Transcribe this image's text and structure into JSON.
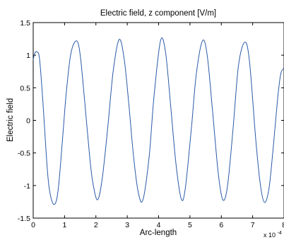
{
  "chart_data": {
    "type": "line",
    "title": "Electric field, z component [V/m]",
    "xlabel": "Arc-length",
    "ylabel": "Electric field",
    "x_exponent_label": "x 10",
    "x_exponent_power": "-4",
    "xlim": [
      0,
      8
    ],
    "ylim": [
      -1.5,
      1.5
    ],
    "x_ticks": [
      "0",
      "1",
      "2",
      "3",
      "4",
      "5",
      "6",
      "7",
      "8"
    ],
    "y_ticks": [
      "-1.5",
      "-1",
      "-0.5",
      "0",
      "0.5",
      "1",
      "1.5"
    ],
    "grid": false,
    "line_color": "#2a5aa8",
    "series": [
      {
        "x": [
          0,
          0.05,
          0.12,
          0.2,
          0.3,
          0.45,
          0.55,
          0.68,
          0.8,
          0.95,
          1.05,
          1.2,
          1.38,
          1.5,
          1.65,
          1.8,
          1.9,
          2.05,
          2.2,
          2.38,
          2.55,
          2.74,
          2.9,
          3.05,
          3.2,
          3.35,
          3.5,
          3.7,
          3.85,
          4.06,
          4.22,
          4.38,
          4.55,
          4.72,
          4.85,
          5.05,
          5.2,
          5.4,
          5.55,
          5.72,
          5.9,
          6.05,
          6.2,
          6.38,
          6.55,
          6.75,
          6.9,
          7.1,
          7.25,
          7.38,
          7.52,
          7.65,
          7.8,
          7.9,
          8.0
        ],
        "y": [
          0.93,
          1.03,
          1.05,
          0.95,
          0.35,
          -0.75,
          -1.15,
          -1.29,
          -1.05,
          -0.2,
          0.4,
          1.02,
          1.22,
          1.0,
          0.25,
          -0.55,
          -0.95,
          -1.22,
          -0.9,
          -0.1,
          0.75,
          1.24,
          0.95,
          0.25,
          -0.55,
          -1.1,
          -1.22,
          -0.55,
          0.35,
          1.22,
          1.05,
          0.25,
          -0.65,
          -1.2,
          -1.05,
          -0.1,
          0.7,
          1.22,
          1.0,
          0.15,
          -0.8,
          -1.22,
          -1.0,
          -0.1,
          0.85,
          1.2,
          0.9,
          -0.3,
          -1.0,
          -1.26,
          -1.05,
          -0.45,
          0.35,
          0.72,
          0.8
        ]
      }
    ]
  }
}
